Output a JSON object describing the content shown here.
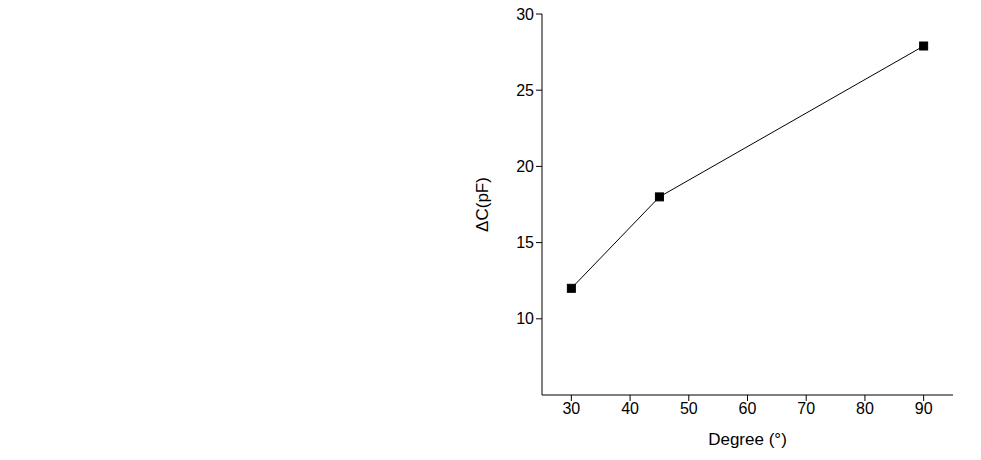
{
  "chart_data": {
    "type": "line",
    "x": [
      30,
      45,
      90
    ],
    "values": [
      12,
      18,
      27.9
    ],
    "color": "#000000",
    "marker": "square",
    "line_style": "solid",
    "xlabel": "Degree (°)",
    "ylabel": "ΔC(pF)",
    "xlim": [
      25,
      95
    ],
    "xticks": [
      30,
      40,
      50,
      60,
      70,
      80,
      90
    ],
    "ylim": [
      5,
      30
    ],
    "yticks": [
      10,
      15,
      20,
      25,
      30
    ]
  }
}
